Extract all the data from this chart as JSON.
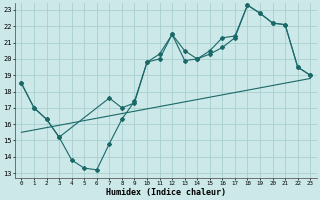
{
  "xlabel": "Humidex (Indice chaleur)",
  "bg_color": "#cce8e8",
  "grid_color": "#a8d0d0",
  "line_color": "#1a6868",
  "xlim": [
    0,
    23
  ],
  "ylim": [
    13,
    23
  ],
  "yticks": [
    13,
    14,
    15,
    16,
    17,
    18,
    19,
    20,
    21,
    22,
    23
  ],
  "xticks": [
    0,
    1,
    2,
    3,
    4,
    5,
    6,
    7,
    8,
    9,
    10,
    11,
    12,
    13,
    14,
    15,
    16,
    17,
    18,
    19,
    20,
    21,
    22,
    23
  ],
  "series1_x": [
    0,
    1,
    2,
    3,
    4,
    5,
    6,
    7,
    8,
    9,
    10,
    11,
    12,
    13,
    14,
    15,
    16,
    17,
    18,
    19,
    20,
    21,
    22,
    23
  ],
  "series1_y": [
    18.5,
    17.0,
    16.3,
    15.2,
    13.8,
    13.3,
    13.2,
    14.8,
    16.3,
    17.4,
    19.8,
    20.0,
    21.5,
    19.9,
    20.0,
    20.3,
    20.7,
    21.3,
    23.3,
    22.8,
    22.2,
    22.1,
    19.5,
    19.0
  ],
  "series2_x": [
    0,
    1,
    2,
    3,
    7,
    8,
    9,
    10,
    11,
    12,
    13,
    14,
    15,
    16,
    17,
    18,
    19,
    20,
    21,
    22,
    23
  ],
  "series2_y": [
    18.5,
    17.0,
    16.3,
    15.2,
    17.6,
    17.0,
    17.3,
    19.8,
    20.3,
    21.5,
    20.5,
    20.0,
    20.5,
    21.3,
    21.4,
    23.3,
    22.8,
    22.2,
    22.1,
    19.5,
    19.0
  ],
  "series3_x": [
    0,
    23
  ],
  "series3_y": [
    15.5,
    18.8
  ]
}
